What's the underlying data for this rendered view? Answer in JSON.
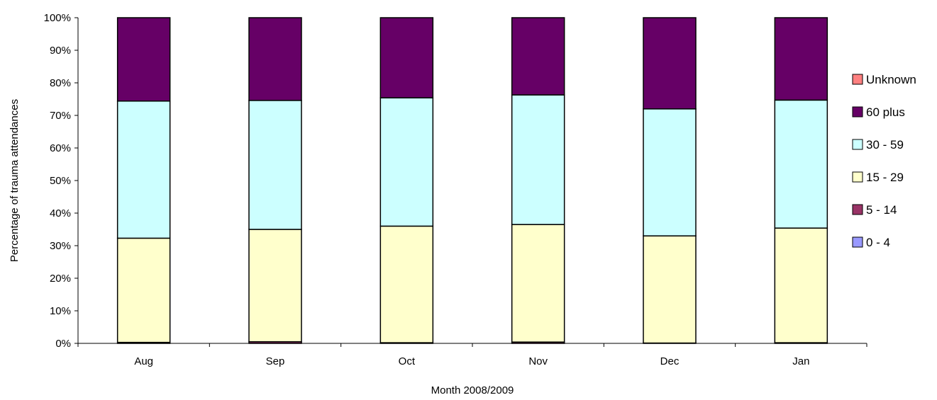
{
  "chart_data": {
    "type": "bar",
    "stacked": true,
    "percent": true,
    "title": "",
    "xlabel": "Month 2008/2009",
    "ylabel": "Percentage of trauma attendances",
    "categories": [
      "Aug",
      "Sep",
      "Oct",
      "Nov",
      "Dec",
      "Jan"
    ],
    "ylim": [
      0,
      100
    ],
    "yticks": [
      "0%",
      "10%",
      "20%",
      "30%",
      "40%",
      "50%",
      "60%",
      "70%",
      "80%",
      "90%",
      "100%"
    ],
    "grid": false,
    "legend_position": "right",
    "legend_order": [
      "Unknown",
      "60 plus",
      "30 - 59",
      "15 - 29",
      "5 - 14",
      "0 - 4"
    ],
    "series": [
      {
        "name": "0 - 4",
        "color": "#9999ff",
        "values": [
          0,
          0,
          0,
          0,
          0,
          0
        ]
      },
      {
        "name": "5 - 14",
        "color": "#993366",
        "values": [
          0.3,
          0.5,
          0.2,
          0.4,
          0.1,
          0.2
        ]
      },
      {
        "name": "15 - 29",
        "color": "#ffffcc",
        "values": [
          32.0,
          34.5,
          35.8,
          36.1,
          32.9,
          35.2
        ]
      },
      {
        "name": "30 - 59",
        "color": "#ccffff",
        "values": [
          42.1,
          39.6,
          39.4,
          39.8,
          39.0,
          39.3
        ]
      },
      {
        "name": "60 plus",
        "color": "#660066",
        "values": [
          25.6,
          25.4,
          24.6,
          23.7,
          28.0,
          25.3
        ]
      },
      {
        "name": "Unknown",
        "color": "#ff8080",
        "values": [
          0,
          0,
          0,
          0,
          0,
          0
        ]
      }
    ]
  }
}
